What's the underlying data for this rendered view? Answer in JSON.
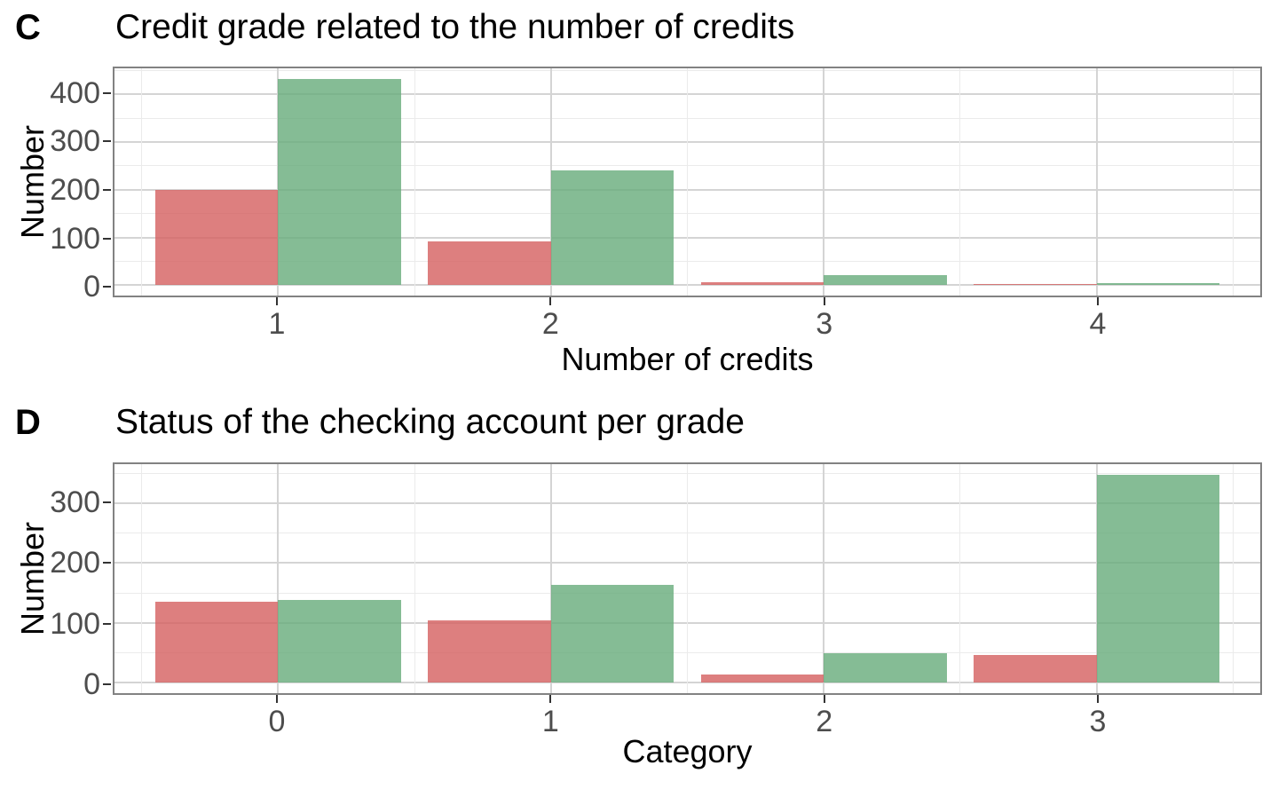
{
  "figure": {
    "background": "#ffffff",
    "text_color": "#000000",
    "tick_label_color": "#4d4d4d",
    "panel_border_color": "#828282",
    "grid_major_color": "#d4d4d4",
    "grid_minor_color": "#ebebeb",
    "tick_mark_color": "#333333"
  },
  "chart_data": [
    {
      "type": "bar",
      "bar_layout": "dodge",
      "tag": "C",
      "title": "Credit grade related to the number of credits",
      "xlabel": "Number of credits",
      "ylabel": "Number",
      "categories": [
        "1",
        "2",
        "3",
        "4"
      ],
      "series": [
        {
          "name": "red",
          "color": "rgba(212,95,95,0.8)",
          "values": [
            200,
            92,
            6,
            2
          ]
        },
        {
          "name": "green",
          "color": "rgba(103,171,123,0.8)",
          "values": [
            433,
            241,
            22,
            4
          ]
        }
      ],
      "yticks": [
        0,
        100,
        200,
        300,
        400
      ],
      "yticks_minor": [
        50,
        150,
        250,
        350,
        450
      ],
      "ylim": [
        -21.65,
        454.65
      ],
      "grid": true,
      "legend": "none"
    },
    {
      "type": "bar",
      "bar_layout": "dodge",
      "tag": "D",
      "title": "Status of the checking account per grade",
      "xlabel": "Category",
      "ylabel": "Number",
      "categories": [
        "0",
        "1",
        "2",
        "3"
      ],
      "series": [
        {
          "name": "red",
          "color": "rgba(212,95,95,0.8)",
          "values": [
            135,
            105,
            14,
            46
          ]
        },
        {
          "name": "green",
          "color": "rgba(103,171,123,0.8)",
          "values": [
            139,
            164,
            49,
            348
          ]
        }
      ],
      "yticks": [
        0,
        100,
        200,
        300
      ],
      "yticks_minor": [
        50,
        150,
        250,
        350
      ],
      "ylim": [
        -17.4,
        365.4
      ],
      "grid": true,
      "legend": "none"
    }
  ]
}
